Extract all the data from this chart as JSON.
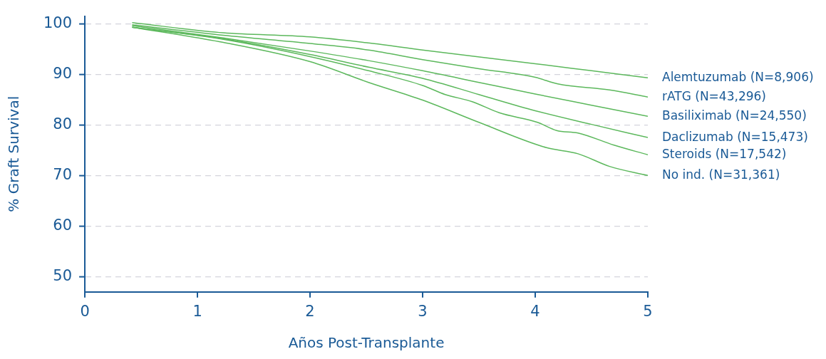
{
  "chart_data": {
    "type": "line",
    "xlabel": "Años Post-Transplante",
    "ylabel": "% Graft Survival",
    "xlim": [
      0,
      5
    ],
    "xticks": [
      0,
      1,
      2,
      3,
      4,
      5
    ],
    "ylim": [
      47,
      101.5
    ],
    "yticks": [
      50,
      60,
      70,
      80,
      90,
      100
    ],
    "grid": "y",
    "legend": false,
    "marker": "none",
    "line_style": "solid",
    "series": [
      {
        "name": "Alemtuzumab (N=8,906)",
        "color": "#5cb85c",
        "x": [
          0.42,
          1.23,
          2,
          2.52,
          3,
          4,
          4.5,
          5
        ],
        "values": [
          100.2,
          98.2,
          97.4,
          96.2,
          94.8,
          92.1,
          90.7,
          89.3
        ]
      },
      {
        "name": "rATG (N=43,296)",
        "color": "#5cb85c",
        "x": [
          0.42,
          1.23,
          2,
          2.52,
          3,
          3.5,
          4,
          4.2,
          4.66,
          5
        ],
        "values": [
          99.8,
          97.7,
          96.1,
          94.8,
          92.9,
          91.1,
          89.4,
          88.1,
          86.9,
          85.5
        ]
      },
      {
        "name": "Basiliximab (N=24,550)",
        "color": "#5cb85c",
        "x": [
          0.42,
          1.23,
          2,
          2.52,
          3,
          3.5,
          4,
          4.5,
          5
        ],
        "values": [
          99.6,
          97.2,
          94.6,
          92.7,
          90.7,
          88.4,
          86.1,
          83.9,
          81.7
        ]
      },
      {
        "name": "Daclizumab (N=15,473)",
        "color": "#5cb85c",
        "x": [
          0.42,
          1.23,
          2,
          2.52,
          3,
          3.5,
          4,
          4.5,
          5
        ],
        "values": [
          99.3,
          97.0,
          93.9,
          91.4,
          89.2,
          86.0,
          82.8,
          80.1,
          77.5
        ]
      },
      {
        "name": "Steroids (N=17,542)",
        "color": "#5cb85c",
        "x": [
          0.42,
          1.23,
          2,
          2.52,
          3,
          3.2,
          3.44,
          3.68,
          4.02,
          4.19,
          4.38,
          4.7,
          5
        ],
        "values": [
          99.3,
          96.9,
          93.5,
          90.7,
          87.8,
          86.0,
          84.6,
          82.4,
          80.5,
          78.9,
          78.4,
          76.0,
          74.1
        ]
      },
      {
        "name": "No ind. (N=31,361)",
        "color": "#5cb85c",
        "x": [
          0.42,
          1.23,
          2,
          2.52,
          3,
          3.5,
          4.1,
          4.38,
          4.66,
          5
        ],
        "values": [
          99.3,
          96.3,
          92.5,
          88.4,
          84.9,
          80.5,
          75.5,
          74.3,
          71.8,
          70.0
        ]
      }
    ]
  }
}
